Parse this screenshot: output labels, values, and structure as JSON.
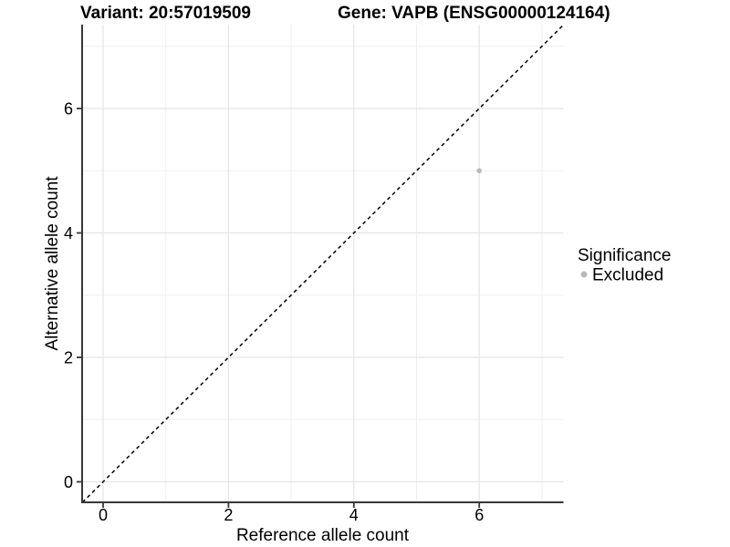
{
  "titles": {
    "variant": "Variant: 20:57019509",
    "gene": "Gene: VAPB (ENSG00000124164)"
  },
  "axes": {
    "x": {
      "label": "Reference allele count",
      "ticks": [
        "0",
        "2",
        "4",
        "6"
      ]
    },
    "y": {
      "label": "Alternative allele count",
      "ticks": [
        "0",
        "2",
        "4",
        "6"
      ]
    }
  },
  "legend": {
    "title": "Significance",
    "items": [
      {
        "label": "Excluded",
        "color": "#b9b9b9"
      }
    ]
  },
  "colors": {
    "point": "#b9b9b9",
    "grid_major": "#e4e4e4",
    "grid_minor": "#efefef",
    "axis": "#373737",
    "reference_line": "#000000",
    "background": "#ffffff"
  },
  "chart_data": {
    "type": "scatter",
    "title_left": "Variant: 20:57019509",
    "title_right": "Gene: VAPB (ENSG00000124164)",
    "xlabel": "Reference allele count",
    "ylabel": "Alternative allele count",
    "xlim": [
      -0.33,
      7.34
    ],
    "ylim": [
      -0.33,
      7.34
    ],
    "x_ticks": [
      0,
      2,
      4,
      6
    ],
    "y_ticks": [
      0,
      2,
      4,
      6
    ],
    "minor_ticks": [
      1,
      3,
      5,
      7
    ],
    "grid": true,
    "legend_position": "right",
    "reference_line": {
      "style": "dashed",
      "slope": 1,
      "intercept": 0,
      "from": [
        -0.33,
        -0.33
      ],
      "to": [
        7.34,
        7.34
      ]
    },
    "series": [
      {
        "name": "Excluded",
        "color": "#b9b9b9",
        "points": [
          {
            "x": 6,
            "y": 5
          }
        ]
      }
    ]
  }
}
